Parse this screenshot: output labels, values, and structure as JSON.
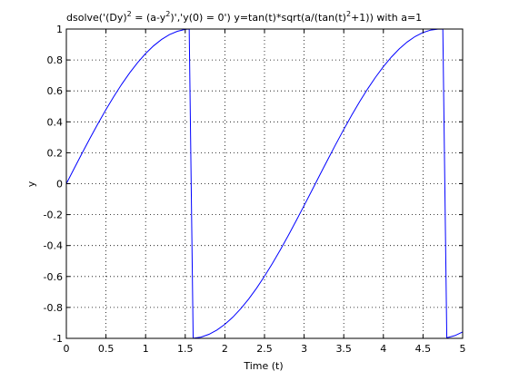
{
  "figure": {
    "title_prefix": "dsolve('(Dy)",
    "title_sup1": "2",
    "title_mid": " = (a-y",
    "title_sup2": "2",
    "title_mid2": ")','y(0) = 0')    y=tan(t)*sqrt(a/(tan(t)",
    "title_sup3": "2",
    "title_suffix": "+1)) with a=1",
    "background": "#ffffff",
    "line_color": "#0000ff"
  },
  "chart_data": {
    "type": "line",
    "title": "dsolve('(Dy)^2 = (a-y^2)','y(0) = 0')    y=tan(t)*sqrt(a/(tan(t)^2+1)) with a=1",
    "xlabel": "Time (t)",
    "ylabel": "y",
    "xlim": [
      0,
      5
    ],
    "ylim": [
      -1,
      1
    ],
    "grid": true,
    "xticks": [
      0,
      0.5,
      1,
      1.5,
      2,
      2.5,
      3,
      3.5,
      4,
      4.5,
      5
    ],
    "xtick_labels": [
      "0",
      "0.5",
      "1",
      "1.5",
      "2",
      "2.5",
      "3",
      "3.5",
      "4",
      "4.5",
      "5"
    ],
    "yticks": [
      -1,
      -0.8,
      -0.6,
      -0.4,
      -0.2,
      0,
      0.2,
      0.4,
      0.6,
      0.8,
      1
    ],
    "ytick_labels": [
      "-1",
      "-0.8",
      "-0.6",
      "-0.4",
      "-0.2",
      "0",
      "0.2",
      "0.4",
      "0.6",
      "0.8",
      "1"
    ],
    "series": [
      {
        "color": "#0000ff",
        "x": [
          0,
          0.1,
          0.2,
          0.3,
          0.4,
          0.5,
          0.6,
          0.7,
          0.8,
          0.9,
          1.0,
          1.1,
          1.2,
          1.3,
          1.4,
          1.5,
          1.55,
          1.6,
          1.7,
          1.8,
          1.9,
          2.0,
          2.1,
          2.2,
          2.3,
          2.4,
          2.5,
          2.6,
          2.7,
          2.8,
          2.9,
          3.0,
          3.1,
          3.2,
          3.3,
          3.4,
          3.5,
          3.6,
          3.7,
          3.8,
          3.9,
          4.0,
          4.1,
          4.2,
          4.3,
          4.4,
          4.5,
          4.6,
          4.7,
          4.75,
          4.8,
          4.9,
          5.0
        ],
        "y": [
          0,
          0.0998,
          0.1987,
          0.2955,
          0.3894,
          0.4794,
          0.5646,
          0.6442,
          0.7174,
          0.7833,
          0.8415,
          0.8912,
          0.932,
          0.9636,
          0.9854,
          0.9975,
          0.9998,
          -0.9996,
          -0.9917,
          -0.9738,
          -0.9463,
          -0.9093,
          -0.8632,
          -0.8085,
          -0.7457,
          -0.6755,
          -0.5985,
          -0.5155,
          -0.4274,
          -0.335,
          -0.2392,
          -0.1411,
          -0.0416,
          0.0584,
          0.1577,
          0.2555,
          0.3508,
          0.4425,
          0.5298,
          0.6119,
          0.6878,
          0.7568,
          0.8183,
          0.8716,
          0.9162,
          0.9516,
          0.9775,
          0.9937,
          0.9999,
          0.9993,
          -0.9962,
          -0.9825,
          -0.9589
        ]
      }
    ]
  }
}
